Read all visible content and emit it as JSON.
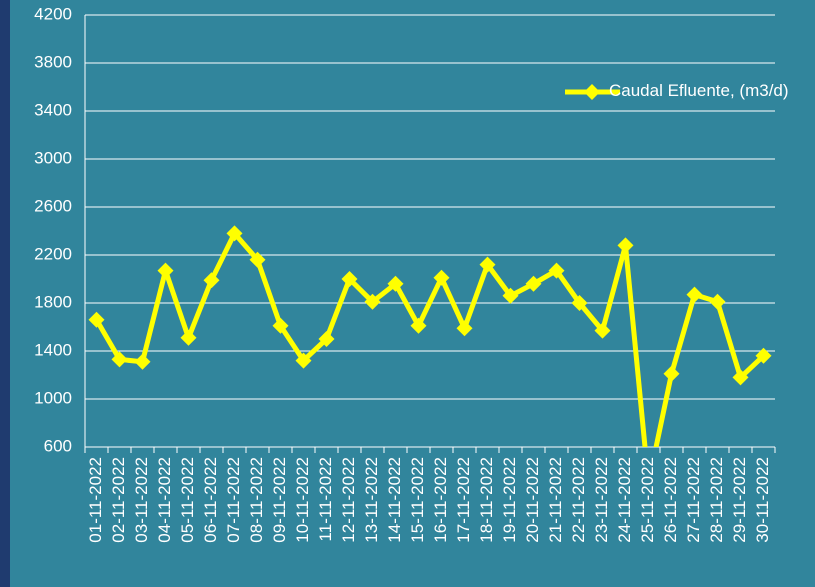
{
  "chart_data": {
    "type": "line",
    "categories": [
      "01-11-2022",
      "02-11-2022",
      "03-11-2022",
      "04-11-2022",
      "05-11-2022",
      "06-11-2022",
      "07-11-2022",
      "08-11-2022",
      "09-11-2022",
      "10-11-2022",
      "11-11-2022",
      "12-11-2022",
      "13-11-2022",
      "14-11-2022",
      "15-11-2022",
      "16-11-2022",
      "17-11-2022",
      "18-11-2022",
      "19-11-2022",
      "20-11-2022",
      "21-11-2022",
      "22-11-2022",
      "23-11-2022",
      "24-11-2022",
      "25-11-2022",
      "26-11-2022",
      "27-11-2022",
      "28-11-2022",
      "29-11-2022",
      "30-11-2022"
    ],
    "series": [
      {
        "name": "Caudal Efluente, (m3/d)",
        "color": "#ffff00",
        "values": [
          1660,
          1330,
          1310,
          2070,
          1510,
          1990,
          2380,
          2160,
          1610,
          1320,
          1500,
          2000,
          1810,
          1960,
          1610,
          2010,
          1590,
          2120,
          1860,
          1960,
          2070,
          1800,
          1570,
          2280,
          300,
          1210,
          1870,
          1810,
          1180,
          1360
        ]
      }
    ],
    "ylim": [
      600,
      4200
    ],
    "yticks": [
      600,
      1000,
      1400,
      1800,
      2200,
      2600,
      3000,
      3400,
      3800,
      4200
    ],
    "grid": true,
    "legend": "top-right"
  }
}
